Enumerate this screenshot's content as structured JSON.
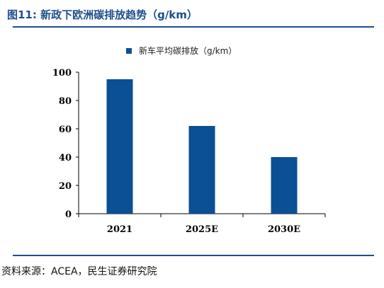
{
  "figure": {
    "title": "图11: 新政下欧洲碳排放趋势（g/km）",
    "source": "资料来源：ACEA，民生证券研究院",
    "accent_color": "#1f4e8c"
  },
  "chart_data": {
    "type": "bar",
    "categories": [
      "2021",
      "2025E",
      "2030E"
    ],
    "series": [
      {
        "name": "新车平均碳排放（g/km）",
        "values": [
          95,
          62,
          40
        ],
        "color": "#0b4f95"
      }
    ],
    "ylim": [
      0,
      100
    ],
    "yticks": [
      0,
      20,
      40,
      60,
      80,
      100
    ],
    "grid": false,
    "legend": "top-center",
    "xlabel": "",
    "ylabel": ""
  }
}
